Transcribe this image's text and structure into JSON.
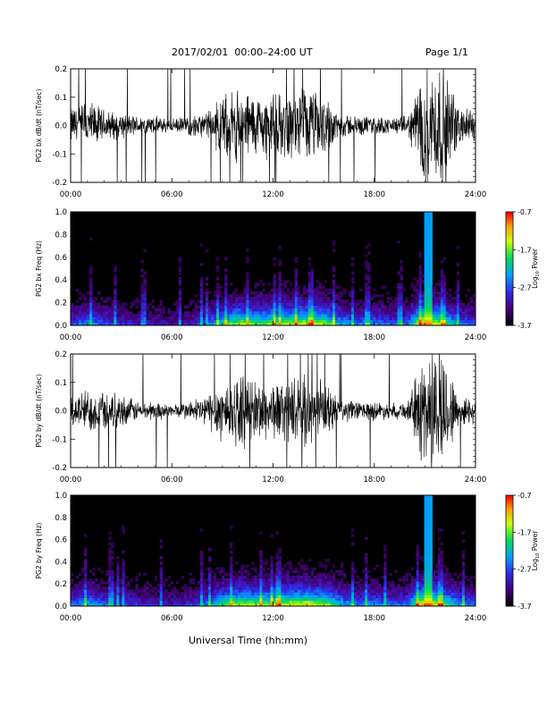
{
  "header": {
    "title": "2017/02/01  00:00–24:00 UT",
    "page": "Page 1/1"
  },
  "xaxis_title": "Universal Time (hh:mm)",
  "chart_data": [
    {
      "type": "line",
      "ylabel": "PG2 bx dB/dt (nT/sec)",
      "ylim": [
        -0.2,
        0.2
      ],
      "xlim_hours": [
        0,
        24
      ],
      "xticks": [
        "00:00",
        "06:00",
        "12:00",
        "18:00",
        "24:00"
      ],
      "yticks": [
        "-0.2",
        "-0.1",
        "0.0",
        "0.1",
        "0.2"
      ],
      "yticks_values": [
        -0.2,
        -0.1,
        0.0,
        0.1,
        0.2
      ],
      "envelope_hours": [
        0,
        1,
        2,
        3,
        4,
        5,
        6,
        7,
        8,
        9,
        10,
        11,
        12,
        13,
        14,
        15,
        16,
        17,
        18,
        19,
        20,
        21,
        22,
        23,
        24
      ],
      "envelope_amplitude": [
        0.06,
        0.08,
        0.05,
        0.04,
        0.03,
        0.03,
        0.02,
        0.03,
        0.04,
        0.09,
        0.12,
        0.1,
        0.1,
        0.1,
        0.12,
        0.1,
        0.04,
        0.03,
        0.03,
        0.025,
        0.03,
        0.2,
        0.2,
        0.06,
        0.05
      ],
      "color": "#000000"
    },
    {
      "type": "heatmap",
      "ylabel": "PG2 bx Freq (Hz)",
      "ylim": [
        0.0,
        1.0
      ],
      "xlim_hours": [
        0,
        24
      ],
      "xticks": [
        "00:00",
        "06:00",
        "12:00",
        "18:00",
        "24:00"
      ],
      "yticks": [
        "0.0",
        "0.2",
        "0.4",
        "0.6",
        "0.8",
        "1.0"
      ],
      "yticks_values": [
        0.0,
        0.2,
        0.4,
        0.6,
        0.8,
        1.0
      ],
      "colorbar": {
        "label": "Log10 Power",
        "label_main": "Log",
        "label_sub": "10",
        "label_rest": " Power",
        "ticks": [
          "-0.7",
          "-1.7",
          "-2.7",
          "-3.7"
        ],
        "tick_values": [
          -0.7,
          -1.7,
          -2.7,
          -3.7
        ],
        "range": [
          -3.7,
          -0.7
        ]
      },
      "activity_hours": [
        0,
        1,
        2,
        3,
        4,
        5,
        6,
        7,
        8,
        9,
        10,
        11,
        12,
        13,
        14,
        15,
        16,
        17,
        18,
        19,
        20,
        21,
        22,
        23,
        24
      ],
      "activity": [
        0.35,
        0.45,
        0.35,
        0.3,
        0.25,
        0.25,
        0.2,
        0.25,
        0.35,
        0.6,
        0.75,
        0.7,
        0.7,
        0.75,
        0.8,
        0.75,
        0.5,
        0.4,
        0.45,
        0.35,
        0.4,
        1.0,
        0.7,
        0.45,
        0.35
      ]
    },
    {
      "type": "line",
      "ylabel": "PG2 by dB/dt (nT/sec)",
      "ylim": [
        -0.2,
        0.2
      ],
      "xlim_hours": [
        0,
        24
      ],
      "xticks": [
        "00:00",
        "06:00",
        "12:00",
        "18:00",
        "24:00"
      ],
      "yticks": [
        "-0.2",
        "-0.1",
        "0.0",
        "0.1",
        "0.2"
      ],
      "yticks_values": [
        -0.2,
        -0.1,
        0.0,
        0.1,
        0.2
      ],
      "envelope_hours": [
        0,
        1,
        2,
        3,
        4,
        5,
        6,
        7,
        8,
        9,
        10,
        11,
        12,
        13,
        14,
        15,
        16,
        17,
        18,
        19,
        20,
        21,
        22,
        23,
        24
      ],
      "envelope_amplitude": [
        0.05,
        0.07,
        0.06,
        0.05,
        0.03,
        0.03,
        0.02,
        0.03,
        0.05,
        0.1,
        0.11,
        0.1,
        0.09,
        0.1,
        0.11,
        0.09,
        0.04,
        0.03,
        0.03,
        0.025,
        0.03,
        0.2,
        0.2,
        0.05,
        0.04
      ],
      "color": "#000000"
    },
    {
      "type": "heatmap",
      "ylabel": "PG2 by Freq (Hz)",
      "ylim": [
        0.0,
        1.0
      ],
      "xlim_hours": [
        0,
        24
      ],
      "xticks": [
        "00:00",
        "06:00",
        "12:00",
        "18:00",
        "24:00"
      ],
      "yticks": [
        "0.0",
        "0.2",
        "0.4",
        "0.6",
        "0.8",
        "1.0"
      ],
      "yticks_values": [
        0.0,
        0.2,
        0.4,
        0.6,
        0.8,
        1.0
      ],
      "colorbar": {
        "label": "Log10 Power",
        "label_main": "Log",
        "label_sub": "10",
        "label_rest": " Power",
        "ticks": [
          "-0.7",
          "-1.7",
          "-2.7",
          "-3.7"
        ],
        "tick_values": [
          -0.7,
          -1.7,
          -2.7,
          -3.7
        ],
        "range": [
          -3.7,
          -0.7
        ]
      },
      "activity_hours": [
        0,
        1,
        2,
        3,
        4,
        5,
        6,
        7,
        8,
        9,
        10,
        11,
        12,
        13,
        14,
        15,
        16,
        17,
        18,
        19,
        20,
        21,
        22,
        23,
        24
      ],
      "activity": [
        0.4,
        0.5,
        0.4,
        0.35,
        0.3,
        0.28,
        0.25,
        0.3,
        0.4,
        0.65,
        0.78,
        0.72,
        0.72,
        0.78,
        0.82,
        0.76,
        0.52,
        0.42,
        0.48,
        0.38,
        0.42,
        1.0,
        0.72,
        0.48,
        0.38
      ]
    }
  ]
}
